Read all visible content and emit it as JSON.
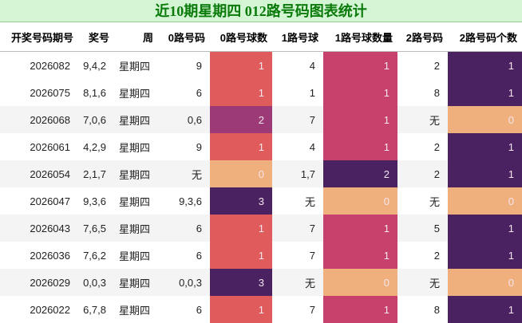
{
  "title": "近10期星期四 012路号码图表统计",
  "table": {
    "headers": [
      "开奖号码期号",
      "奖号",
      "周",
      "0路号码",
      "0路号球数",
      "1路号球",
      "1路号球数量",
      "2路号码",
      "2路号码个数"
    ],
    "heat_colors": {
      "4": [
        "#f0b07e",
        "#e05c5c",
        "#9c3a78",
        "#4a2261"
      ],
      "6": [
        "#f0b07e",
        "#c8406c",
        "#4a2261"
      ],
      "8": [
        "#f0b07e",
        "#4a2261"
      ]
    },
    "rows": [
      [
        "2026082",
        "9,4,2",
        "星期四",
        "9",
        1,
        "4",
        1,
        "2",
        1
      ],
      [
        "2026075",
        "8,1,6",
        "星期四",
        "6",
        1,
        "1",
        1,
        "8",
        1
      ],
      [
        "2026068",
        "7,0,6",
        "星期四",
        "0,6",
        2,
        "7",
        1,
        "无",
        0
      ],
      [
        "2026061",
        "4,2,9",
        "星期四",
        "9",
        1,
        "4",
        1,
        "2",
        1
      ],
      [
        "2026054",
        "2,1,7",
        "星期四",
        "无",
        0,
        "1,7",
        2,
        "2",
        1
      ],
      [
        "2026047",
        "9,3,6",
        "星期四",
        "9,3,6",
        3,
        "无",
        0,
        "无",
        0
      ],
      [
        "2026043",
        "7,6,5",
        "星期四",
        "6",
        1,
        "7",
        1,
        "5",
        1
      ],
      [
        "2026036",
        "7,6,2",
        "星期四",
        "6",
        1,
        "7",
        1,
        "2",
        1
      ],
      [
        "2026029",
        "0,0,3",
        "星期四",
        "0,0,3",
        3,
        "无",
        0,
        "无",
        0
      ],
      [
        "2026022",
        "6,7,8",
        "星期四",
        "6",
        1,
        "7",
        1,
        "8",
        1
      ]
    ]
  }
}
